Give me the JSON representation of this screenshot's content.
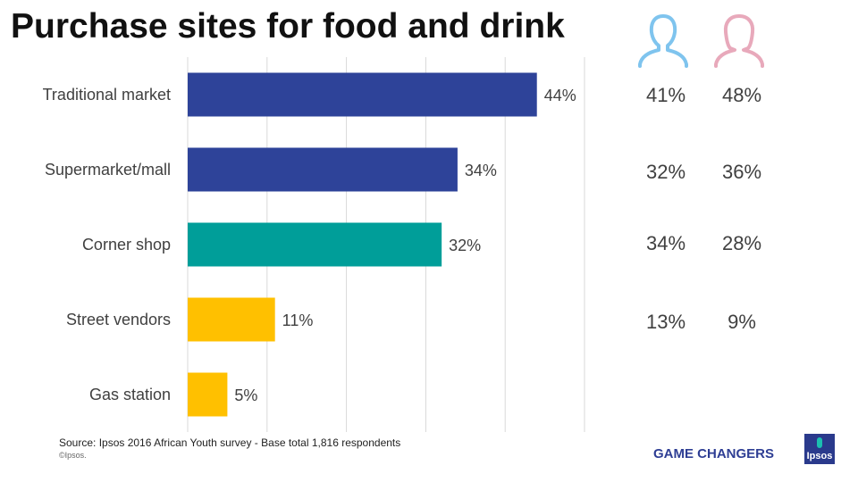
{
  "title": "Purchase sites for food and drink",
  "chart_data": {
    "type": "bar",
    "orientation": "horizontal",
    "title": "Purchase sites for food and drink",
    "categories": [
      "Traditional market",
      "Supermarket/mall",
      "Corner shop",
      "Street vendors",
      "Gas station"
    ],
    "values": [
      44,
      34,
      32,
      11,
      5
    ],
    "value_labels": [
      "44%",
      "34%",
      "32%",
      "11%",
      "5%"
    ],
    "bar_colors": [
      "#2e4399",
      "#2e4399",
      "#009e99",
      "#ffc000",
      "#ffc000"
    ],
    "xlim": [
      0,
      50
    ],
    "grid": true,
    "xlabel": "",
    "ylabel": ""
  },
  "gender_breakdown": {
    "male_icon": "male-person-icon",
    "female_icon": "female-person-icon",
    "male_color": "#7fc4ee",
    "female_color": "#e8a9bb",
    "rows": [
      {
        "male": "41%",
        "female": "48%"
      },
      {
        "male": "32%",
        "female": "36%"
      },
      {
        "male": "34%",
        "female": "28%"
      },
      {
        "male": "13%",
        "female": "9%"
      }
    ]
  },
  "footer": {
    "source": "Source: Ipsos  2016 African Youth survey - Base total 1,816 respondents",
    "copyright": "©Ipsos.",
    "brand": "GAME CHANGERS",
    "logo_text": "Ipsos"
  }
}
